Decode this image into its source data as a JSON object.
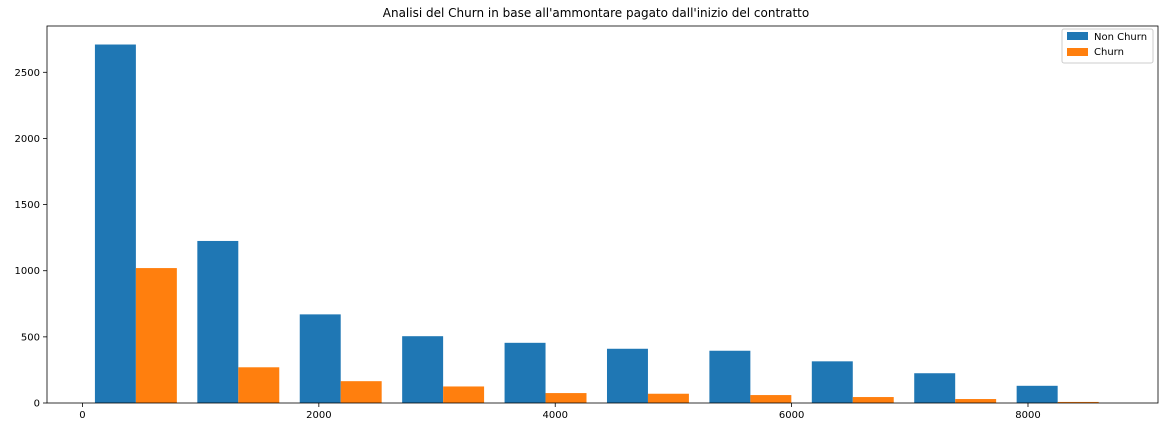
{
  "chart_data": {
    "type": "bar",
    "title": "Analisi del Churn in base all'ammontare pagato dall'inizio del contratto",
    "xlabel": "",
    "ylabel": "",
    "x_ticks": [
      0,
      2000,
      4000,
      6000,
      8000
    ],
    "y_ticks": [
      0,
      500,
      1000,
      1500,
      2000,
      2500
    ],
    "xlim": [
      -300,
      9100
    ],
    "ylim": [
      0,
      2850
    ],
    "bin_edges": [
      18.8,
      885.3,
      1751.8,
      2618.3,
      3484.8,
      4351.3,
      5217.8,
      6084.3,
      6950.8,
      7817.3,
      8684.8
    ],
    "series": [
      {
        "name": "Non Churn",
        "color": "#1f77b4",
        "values": [
          2710,
          1225,
          670,
          505,
          455,
          410,
          395,
          315,
          225,
          130
        ]
      },
      {
        "name": "Churn",
        "color": "#ff7f0e",
        "values": [
          1020,
          270,
          165,
          125,
          75,
          70,
          60,
          45,
          30,
          8
        ]
      }
    ],
    "legend_position": "upper right",
    "grid": false
  }
}
